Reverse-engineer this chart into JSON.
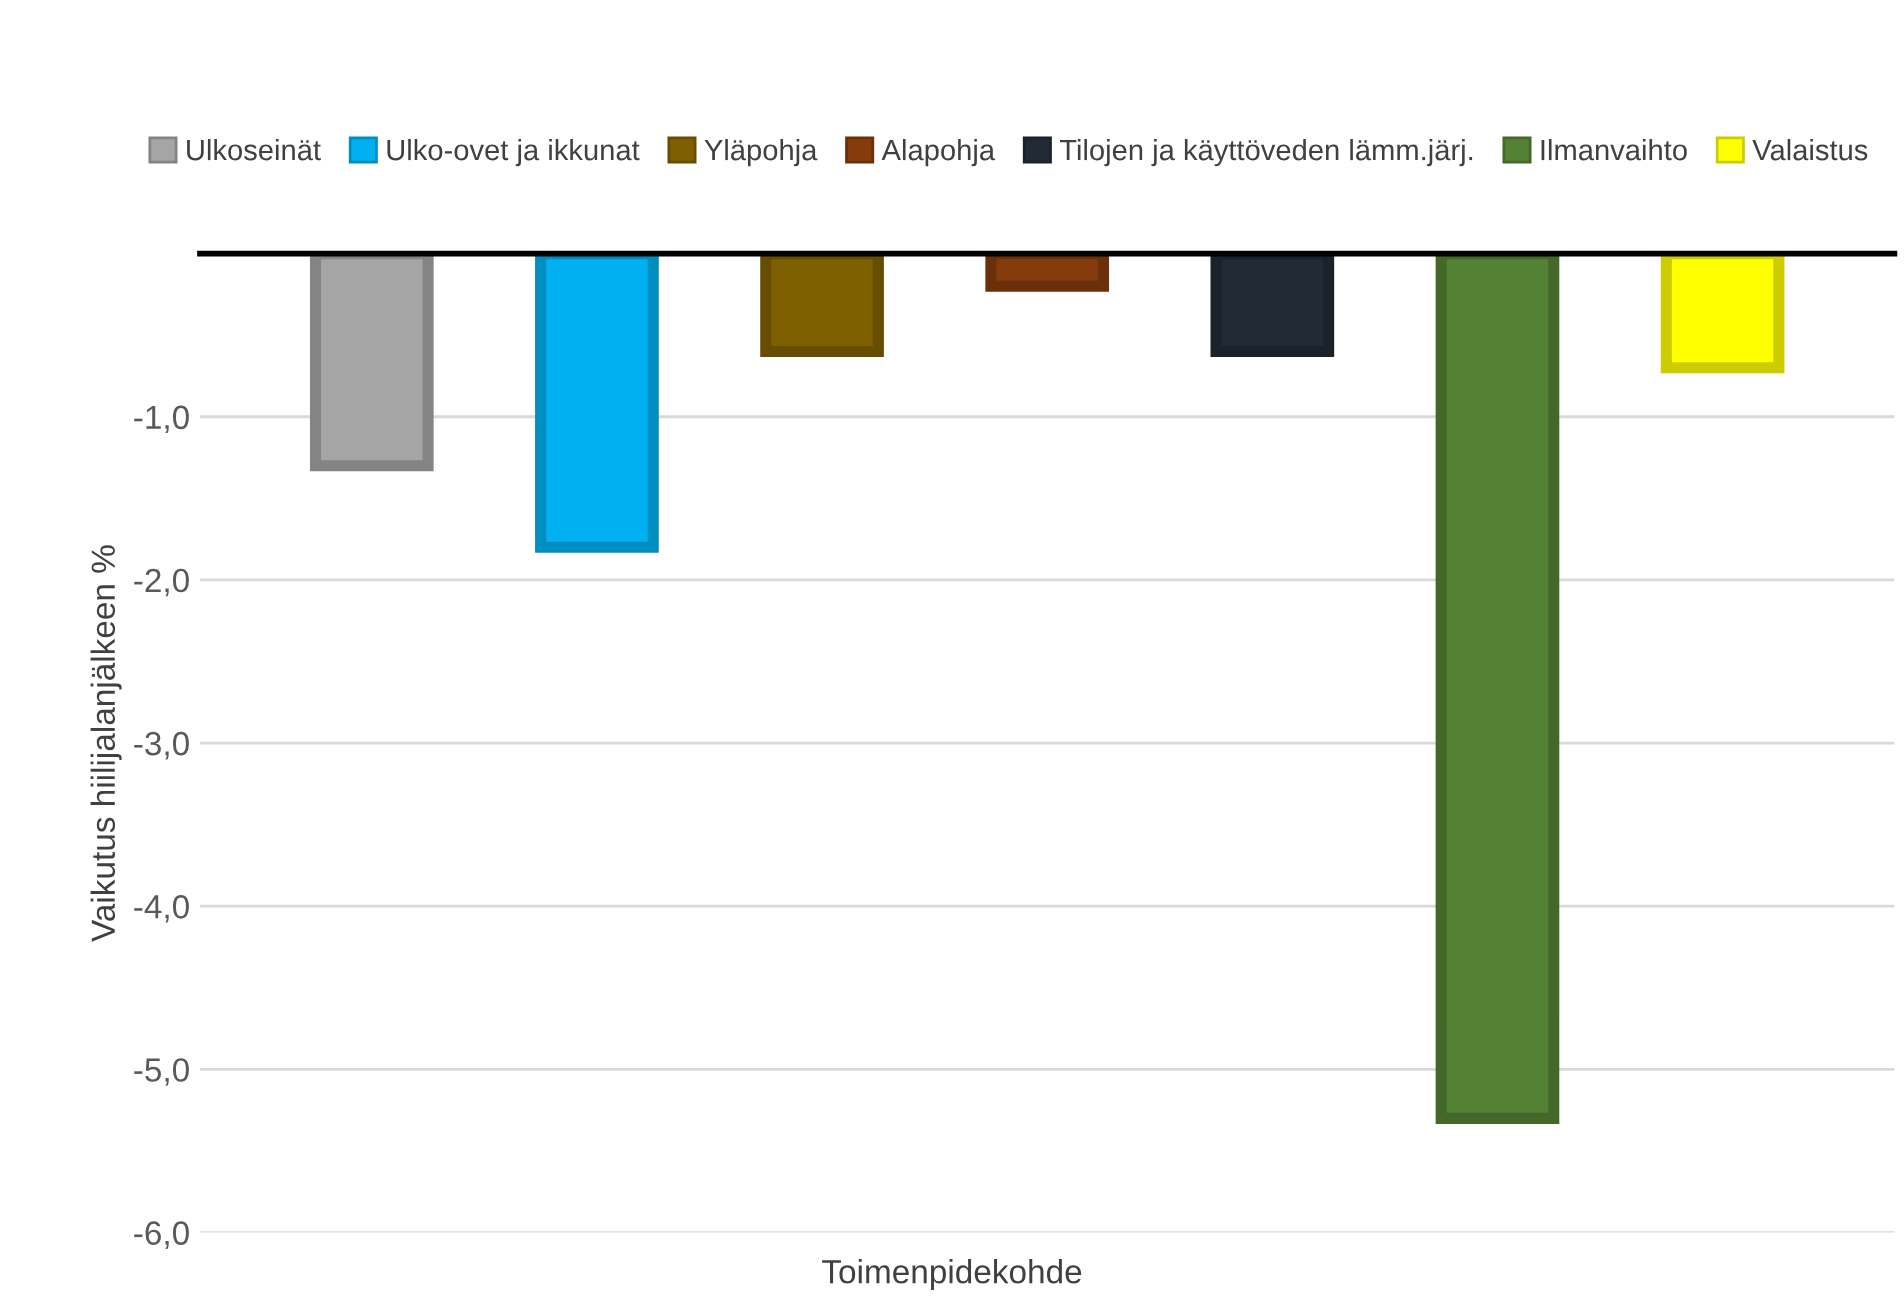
{
  "chart_data": {
    "type": "bar",
    "xlabel": "Toimenpidekohde",
    "ylabel": "Vaikutus hiilijalanjälkeen %",
    "categories": [
      null
    ],
    "series": [
      {
        "name": "Ulkoseinät",
        "color": "#a5a5a5",
        "values": [
          -1.3
        ]
      },
      {
        "name": "Ulko-ovet ja ikkunat",
        "color": "#00b0f0",
        "values": [
          -1.8
        ]
      },
      {
        "name": "Yläpohja",
        "color": "#7f6000",
        "values": [
          -0.6
        ]
      },
      {
        "name": "Alapohja",
        "color": "#843c0c",
        "values": [
          -0.2
        ]
      },
      {
        "name": "Tilojen ja käyttöveden lämm.järj.",
        "color": "#222a35",
        "values": [
          -0.6
        ]
      },
      {
        "name": "Ilmanvaihto",
        "color": "#548235",
        "values": [
          -5.3
        ]
      },
      {
        "name": "Valaistus",
        "color": "#ffff00",
        "values": [
          -0.7
        ]
      }
    ],
    "ylim": [
      -6,
      0
    ],
    "yticks": [
      {
        "value": -6,
        "label": "-6,0"
      },
      {
        "value": -5,
        "label": "-5,0"
      },
      {
        "value": -4,
        "label": "-4,0"
      },
      {
        "value": -3,
        "label": "-3,0"
      },
      {
        "value": -2,
        "label": "-2,0"
      },
      {
        "value": -1,
        "label": "-1,0"
      }
    ],
    "grid": "y",
    "legend": "top"
  }
}
